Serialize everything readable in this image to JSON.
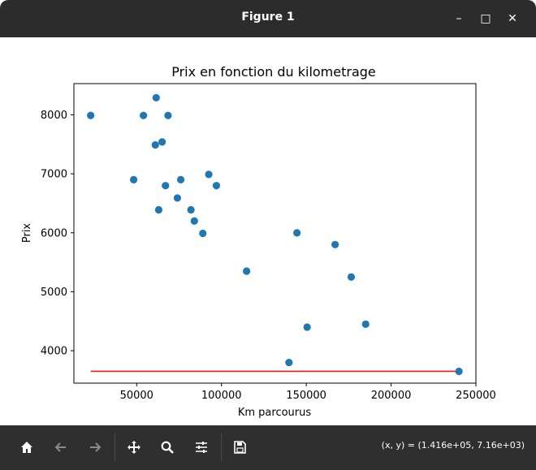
{
  "window": {
    "title": "Figure 1",
    "controls": {
      "minimize": "–",
      "maximize": "□",
      "close": "✕"
    }
  },
  "toolbar": {
    "buttons": [
      "home",
      "back",
      "forward",
      "pan",
      "zoom",
      "configure-subplots",
      "save"
    ],
    "coords_text": "(x, y) = (1.416e+05, 7.16e+03)"
  },
  "chart_data": {
    "type": "scatter",
    "title": "Prix en fonction du kilometrage",
    "xlabel": "Km parcourus",
    "ylabel": "Prix",
    "xlim": [
      13000,
      250000
    ],
    "ylim": [
      3450,
      8530
    ],
    "xticks": [
      50000,
      100000,
      150000,
      200000,
      250000
    ],
    "xtick_labels": [
      "50000",
      "100000",
      "150000",
      "200000",
      "250000"
    ],
    "yticks": [
      4000,
      5000,
      6000,
      7000,
      8000
    ],
    "ytick_labels": [
      "4000",
      "5000",
      "6000",
      "7000",
      "8000"
    ],
    "points": [
      {
        "x": 22899,
        "y": 7990
      },
      {
        "x": 48235,
        "y": 6900
      },
      {
        "x": 54000,
        "y": 7990
      },
      {
        "x": 61000,
        "y": 7490
      },
      {
        "x": 61500,
        "y": 8290
      },
      {
        "x": 63000,
        "y": 6390
      },
      {
        "x": 65000,
        "y": 7540
      },
      {
        "x": 67000,
        "y": 6800
      },
      {
        "x": 68500,
        "y": 7990
      },
      {
        "x": 74000,
        "y": 6590
      },
      {
        "x": 76000,
        "y": 6900
      },
      {
        "x": 82000,
        "y": 6390
      },
      {
        "x": 84000,
        "y": 6200
      },
      {
        "x": 89000,
        "y": 5990
      },
      {
        "x": 92500,
        "y": 6990
      },
      {
        "x": 97000,
        "y": 6800
      },
      {
        "x": 114800,
        "y": 5350
      },
      {
        "x": 139800,
        "y": 3800
      },
      {
        "x": 144500,
        "y": 5999
      },
      {
        "x": 150500,
        "y": 4400
      },
      {
        "x": 167000,
        "y": 5800
      },
      {
        "x": 176500,
        "y": 5250
      },
      {
        "x": 185000,
        "y": 4450
      },
      {
        "x": 240000,
        "y": 3650
      }
    ],
    "line": {
      "x": [
        22899,
        240000
      ],
      "y": [
        3650,
        3650
      ],
      "color": "#e41a1c"
    },
    "point_color": "#1f77b4",
    "grid": false
  }
}
